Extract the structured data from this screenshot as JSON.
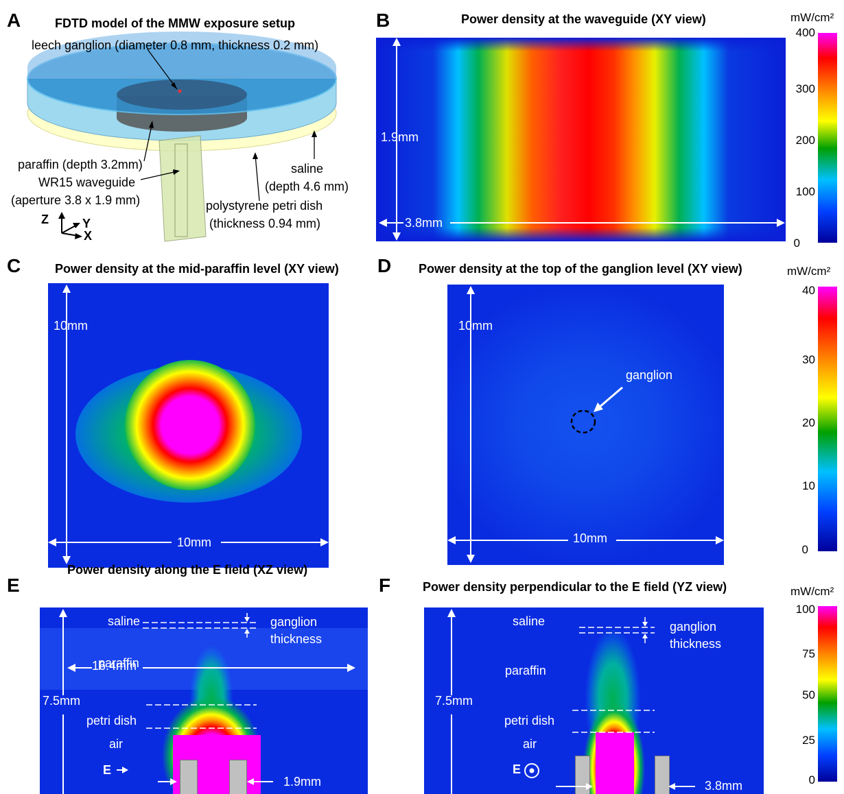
{
  "panels": {
    "A": {
      "letter": "A",
      "title": "FDTD model of the MMW exposure setup",
      "labels": {
        "ganglion": "leech ganglion (diameter 0.8 mm, thickness 0.2 mm)",
        "paraffin": "paraffin (depth 3.2mm)",
        "waveguide_1": "WR15 waveguide",
        "waveguide_2": "(aperture 3.8 x 1.9 mm)",
        "saline_1": "saline",
        "saline_2": "(depth 4.6 mm)",
        "dish_1": "polystyrene petri dish",
        "dish_2": "(thickness 0.94 mm)"
      },
      "axes": {
        "z": "Z",
        "y": "Y",
        "x": "X"
      }
    },
    "B": {
      "letter": "B",
      "title": "Power density at the waveguide (XY view)",
      "dim_vertical": "1.9mm",
      "dim_horizontal": "3.8mm"
    },
    "C": {
      "letter": "C",
      "title": "Power density at the mid-paraffin level (XY view)",
      "dim_vertical": "10mm",
      "dim_horizontal": "10mm"
    },
    "D": {
      "letter": "D",
      "title": "Power density at the top of the ganglion level (XY view)",
      "dim_vertical": "10mm",
      "dim_horizontal": "10mm",
      "ganglion_label": "ganglion"
    },
    "E": {
      "letter": "E",
      "title": "Power density  along the E field (XZ view)",
      "layers": {
        "saline": "saline",
        "paraffin": "paraffin",
        "dish": "petri dish",
        "air": "air"
      },
      "ganglion_1": "ganglion",
      "ganglion_2": "thickness",
      "dim_vertical": "7.5mm",
      "dim_horizontal": "16.4mm",
      "aperture": "1.9mm",
      "efield": "E"
    },
    "F": {
      "letter": "F",
      "title": "Power density  perpendicular to the E field (YZ view)",
      "layers": {
        "saline": "saline",
        "paraffin": "paraffin",
        "dish": "petri dish",
        "air": "air"
      },
      "ganglion_1": "ganglion",
      "ganglion_2": "thickness",
      "dim_vertical": "7.5mm",
      "aperture": "3.8mm",
      "efield": "E"
    }
  },
  "colorbars": {
    "unit": "mW/cm²",
    "top": {
      "ticks": [
        "400",
        "300",
        "200",
        "100",
        "0"
      ],
      "range": [
        0,
        400
      ]
    },
    "middle": {
      "ticks": [
        "40",
        "30",
        "20",
        "10",
        "0"
      ],
      "range": [
        0,
        40
      ]
    },
    "bottom": {
      "ticks": [
        "100",
        "75",
        "50",
        "25",
        "0"
      ],
      "range": [
        0,
        100
      ]
    }
  },
  "colors": {
    "background": "#0a1fd8",
    "hot": "#ff00ff",
    "annotation": "#ffffff"
  }
}
